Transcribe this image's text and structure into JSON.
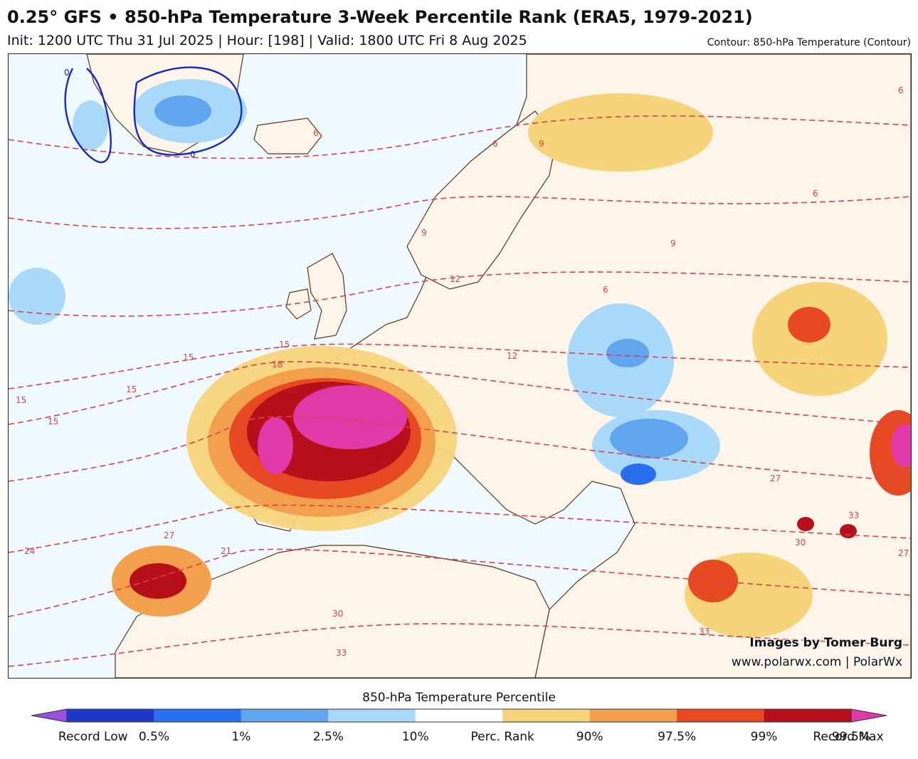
{
  "header": {
    "title": "0.25° GFS • 850-hPa Temperature 3-Week Percentile Rank (ERA5, 1979-2021)",
    "subtitle": "Init: 1200 UTC Thu 31 Jul 2025 | Hour: [198] | Valid: 1800 UTC Fri 8 Aug 2025",
    "contour_note": "Contour: 850-hPa Temperature (Contour)"
  },
  "map": {
    "contour_labels": [
      "0",
      "0",
      "6",
      "6",
      "6",
      "9",
      "9",
      "9",
      "6",
      "6",
      "12",
      "15",
      "18",
      "15",
      "15",
      "15",
      "15",
      "24",
      "27",
      "27",
      "21",
      "30",
      "33",
      "33",
      "27",
      "30",
      "33",
      "33",
      "12"
    ],
    "colors": {
      "ocean": "#eefaff",
      "land": "#fdf5ea",
      "border": "#5a3516",
      "contour_warm": "#e0404a",
      "contour_cold": "#1b26c8"
    }
  },
  "credits": {
    "author": "Images by Tomer Burg",
    "site": "www.polarwx.com | PolarWx"
  },
  "legend": {
    "title": "850-hPa Temperature Percentile",
    "labels": [
      "Record Low",
      "0.5%",
      "1%",
      "2.5%",
      "10%",
      "Perc. Rank",
      "90%",
      "97.5%",
      "99%",
      "99.5%",
      "Record Max"
    ],
    "colors": [
      "#9b4fe0",
      "#1f38c8",
      "#2a6ff0",
      "#5fa6ee",
      "#a9d9f8",
      "#ffffff",
      "#f5d47a",
      "#f3a04c",
      "#e74a23",
      "#b8101a",
      "#e03aa8"
    ]
  }
}
